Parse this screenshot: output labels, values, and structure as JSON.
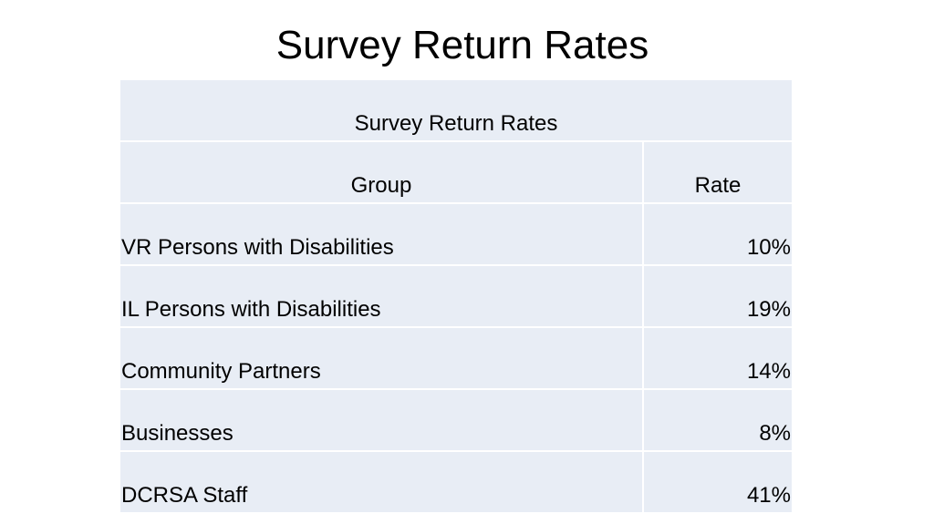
{
  "slide": {
    "title": "Survey Return Rates"
  },
  "table": {
    "caption": "Survey Return Rates",
    "header": [
      "Group",
      "Rate"
    ],
    "rows": [
      [
        "VR Persons with Disabilities",
        "10%"
      ],
      [
        "IL Persons with Disabilities",
        "19%"
      ],
      [
        "Community Partners",
        "14%"
      ],
      [
        "Businesses",
        "8%"
      ],
      [
        "DCRSA Staff",
        "41%"
      ]
    ]
  }
}
